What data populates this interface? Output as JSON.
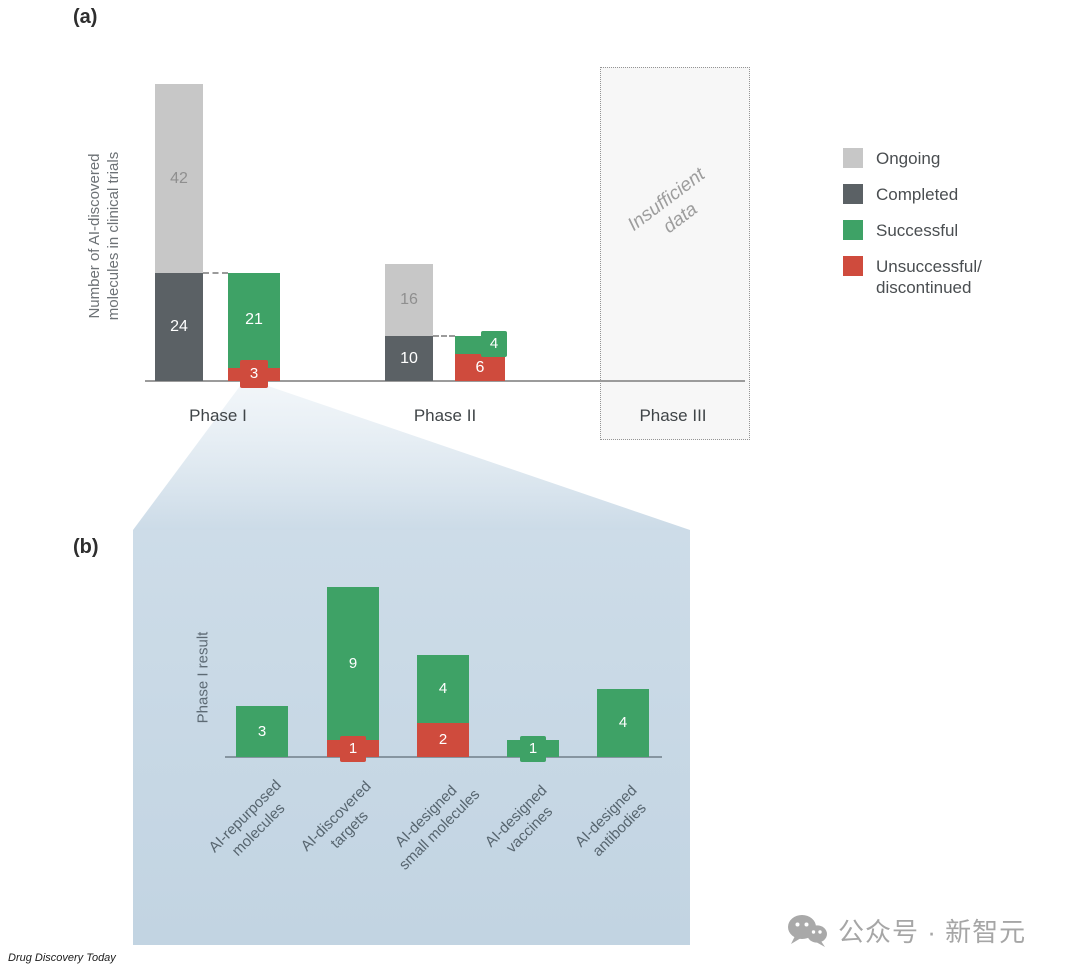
{
  "panel_a": {
    "label": "(a)",
    "ylabel": "Number of AI-discovered molecules in clinical trials",
    "insufficient_note": "Insufficient data"
  },
  "panel_b": {
    "label": "(b)",
    "ylabel": "Phase I result"
  },
  "legend": {
    "items": [
      {
        "label": "Ongoing"
      },
      {
        "label": "Completed"
      },
      {
        "label": "Successful"
      },
      {
        "label": "Unsuccessful/",
        "label2": "discontinued"
      }
    ]
  },
  "footer": {
    "source": "Drug Discovery Today"
  },
  "watermark": {
    "text": "公众号 · 新智元"
  },
  "chart_data": [
    {
      "type": "bar",
      "stacked": true,
      "title": "",
      "ylabel": "Number of AI-discovered molecules in clinical trials",
      "categories": [
        "Phase I",
        "Phase II",
        "Phase III"
      ],
      "series": [
        {
          "name": "Ongoing",
          "color": "#c7c7c7",
          "values": [
            42,
            16,
            null
          ]
        },
        {
          "name": "Completed",
          "color": "#5b6165",
          "values": [
            24,
            10,
            null
          ]
        },
        {
          "name": "Successful",
          "color": "#3ea266",
          "values": [
            21,
            4,
            null
          ]
        },
        {
          "name": "Unsuccessful/discontinued",
          "color": "#cf4b3d",
          "values": [
            3,
            6,
            null
          ]
        }
      ],
      "annotations": [
        "Insufficient data"
      ],
      "layout": {
        "grid": false,
        "legend_position": "right",
        "note": "Each phase shows two stacked bars: Ongoing+Completed and Successful+Unsuccessful; Phase III has insufficient data"
      }
    },
    {
      "type": "bar",
      "stacked": true,
      "title": "",
      "ylabel": "Phase I result",
      "categories": [
        "AI-repurposed molecules",
        "AI-discovered targets",
        "AI-designed small molecules",
        "AI-designed vaccines",
        "AI-designed antibodies"
      ],
      "series": [
        {
          "name": "Successful",
          "color": "#3ea266",
          "values": [
            3,
            9,
            4,
            1,
            4
          ]
        },
        {
          "name": "Unsuccessful/discontinued",
          "color": "#cf4b3d",
          "values": [
            0,
            1,
            2,
            0,
            0
          ]
        }
      ],
      "layout": {
        "grid": false,
        "x_tick_rotation": 45,
        "background": "#c9d9e6"
      }
    }
  ]
}
